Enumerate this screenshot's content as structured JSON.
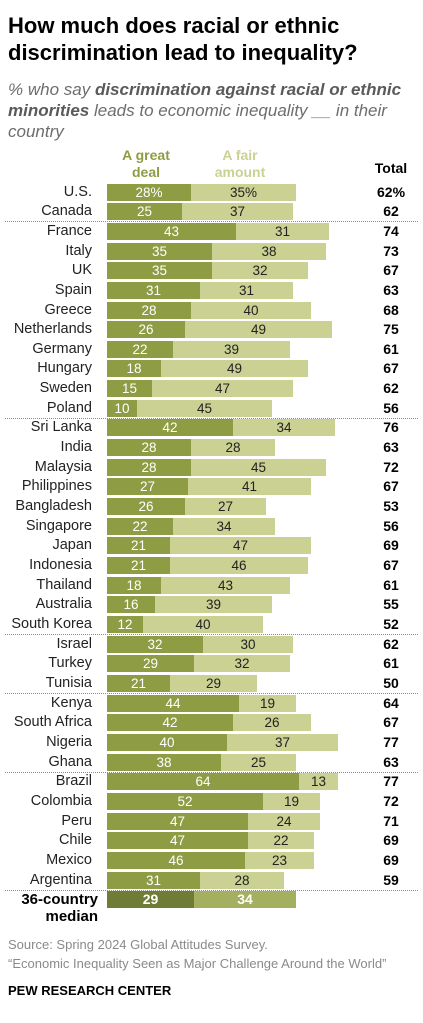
{
  "chart_data": {
    "type": "bar",
    "orientation": "horizontal",
    "stacked": true,
    "title": "How much does racial or ethnic discrimination lead to inequality?",
    "subtitle": {
      "prefix": "% who say",
      "emphasis": "discrimination against racial or ethnic minorities",
      "suffix": "leads to economic inequality __ in their country"
    },
    "unit": "%",
    "series": [
      {
        "name": "A great deal",
        "color": "#8e9c43"
      },
      {
        "name": "A fair amount",
        "color": "#cad192"
      }
    ],
    "total_label": "Total",
    "groups": [
      {
        "rows": [
          {
            "category": "U.S.",
            "values": [
              28,
              35
            ],
            "total": 62
          },
          {
            "category": "Canada",
            "values": [
              25,
              37
            ],
            "total": 62
          }
        ]
      },
      {
        "rows": [
          {
            "category": "France",
            "values": [
              43,
              31
            ],
            "total": 74
          },
          {
            "category": "Italy",
            "values": [
              35,
              38
            ],
            "total": 73
          },
          {
            "category": "UK",
            "values": [
              35,
              32
            ],
            "total": 67
          },
          {
            "category": "Spain",
            "values": [
              31,
              31
            ],
            "total": 63
          },
          {
            "category": "Greece",
            "values": [
              28,
              40
            ],
            "total": 68
          },
          {
            "category": "Netherlands",
            "values": [
              26,
              49
            ],
            "total": 75
          },
          {
            "category": "Germany",
            "values": [
              22,
              39
            ],
            "total": 61
          },
          {
            "category": "Hungary",
            "values": [
              18,
              49
            ],
            "total": 67
          },
          {
            "category": "Sweden",
            "values": [
              15,
              47
            ],
            "total": 62
          },
          {
            "category": "Poland",
            "values": [
              10,
              45
            ],
            "total": 56
          }
        ]
      },
      {
        "rows": [
          {
            "category": "Sri Lanka",
            "values": [
              42,
              34
            ],
            "total": 76
          },
          {
            "category": "India",
            "values": [
              28,
              28
            ],
            "total": 63
          },
          {
            "category": "Malaysia",
            "values": [
              28,
              45
            ],
            "total": 72
          },
          {
            "category": "Philippines",
            "values": [
              27,
              41
            ],
            "total": 67
          },
          {
            "category": "Bangladesh",
            "values": [
              26,
              27
            ],
            "total": 53
          },
          {
            "category": "Singapore",
            "values": [
              22,
              34
            ],
            "total": 56
          },
          {
            "category": "Japan",
            "values": [
              21,
              47
            ],
            "total": 69
          },
          {
            "category": "Indonesia",
            "values": [
              21,
              46
            ],
            "total": 67
          },
          {
            "category": "Thailand",
            "values": [
              18,
              43
            ],
            "total": 61
          },
          {
            "category": "Australia",
            "values": [
              16,
              39
            ],
            "total": 55
          },
          {
            "category": "South Korea",
            "values": [
              12,
              40
            ],
            "total": 52
          }
        ]
      },
      {
        "rows": [
          {
            "category": "Israel",
            "values": [
              32,
              30
            ],
            "total": 62
          },
          {
            "category": "Turkey",
            "values": [
              29,
              32
            ],
            "total": 61
          },
          {
            "category": "Tunisia",
            "values": [
              21,
              29
            ],
            "total": 50
          }
        ]
      },
      {
        "rows": [
          {
            "category": "Kenya",
            "values": [
              44,
              19
            ],
            "total": 64
          },
          {
            "category": "South Africa",
            "values": [
              42,
              26
            ],
            "total": 67
          },
          {
            "category": "Nigeria",
            "values": [
              40,
              37
            ],
            "total": 77
          },
          {
            "category": "Ghana",
            "values": [
              38,
              25
            ],
            "total": 63
          }
        ]
      },
      {
        "rows": [
          {
            "category": "Brazil",
            "values": [
              64,
              13
            ],
            "total": 77
          },
          {
            "category": "Colombia",
            "values": [
              52,
              19
            ],
            "total": 72
          },
          {
            "category": "Peru",
            "values": [
              47,
              24
            ],
            "total": 71
          },
          {
            "category": "Chile",
            "values": [
              47,
              22
            ],
            "total": 69
          },
          {
            "category": "Mexico",
            "values": [
              46,
              23
            ],
            "total": 69
          },
          {
            "category": "Argentina",
            "values": [
              31,
              28
            ],
            "total": 59
          }
        ]
      }
    ],
    "median": {
      "category": "36-country median",
      "values": [
        29,
        34
      ],
      "colors": [
        "#6f7c35",
        "#a5af60"
      ]
    }
  },
  "footer": {
    "source": "Source: Spring 2024 Global Attitudes Survey.",
    "report": "“Economic Inequality Seen as Major Challenge Around the World”",
    "organization": "PEW RESEARCH CENTER"
  }
}
